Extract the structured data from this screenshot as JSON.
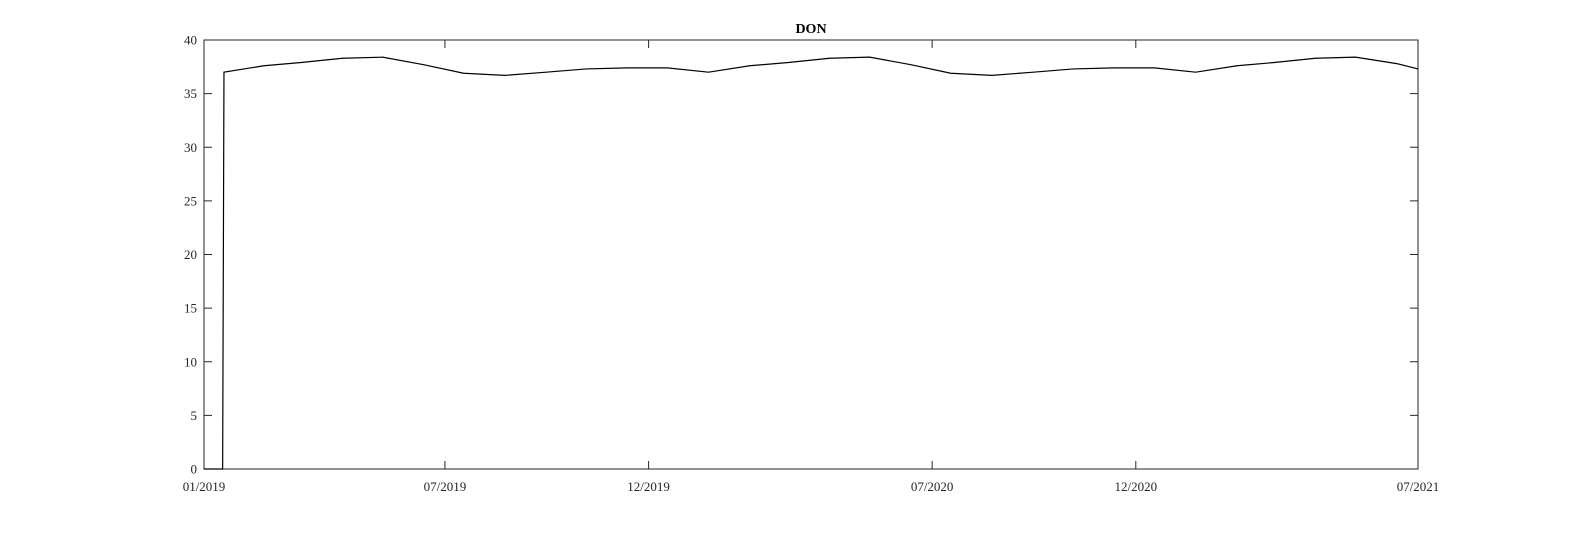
{
  "chart_data": {
    "type": "line",
    "title": "DON",
    "xlabel": "",
    "ylabel": "",
    "xlim": [
      "2019-01-01",
      "2021-07-01"
    ],
    "ylim": [
      0,
      40
    ],
    "grid": false,
    "x_tick_labels": [
      "01/2019",
      "07/2019",
      "12/2019",
      "07/2020",
      "12/2020",
      "07/2021"
    ],
    "x_tick_dates": [
      "2019-01-01",
      "2019-07-01",
      "2019-12-01",
      "2020-07-01",
      "2020-12-01",
      "2021-07-01"
    ],
    "y_ticks": [
      0,
      5,
      10,
      15,
      20,
      25,
      30,
      35,
      40
    ],
    "line_color": "#000000",
    "series": [
      {
        "x": [
          "2019-01-01",
          "2019-01-15",
          "2019-01-16",
          "2019-02-15",
          "2019-03-15",
          "2019-04-15",
          "2019-05-15",
          "2019-06-15",
          "2019-07-15",
          "2019-08-15",
          "2019-09-15",
          "2019-10-15",
          "2019-11-15",
          "2019-12-15",
          "2020-01-15",
          "2020-02-15",
          "2020-03-15",
          "2020-04-15",
          "2020-05-15",
          "2020-06-15",
          "2020-07-15",
          "2020-08-15",
          "2020-09-15",
          "2020-10-15",
          "2020-11-15",
          "2020-12-15",
          "2021-01-15",
          "2021-02-15",
          "2021-03-15",
          "2021-04-15",
          "2021-05-15",
          "2021-06-15",
          "2021-07-01"
        ],
        "values": [
          0,
          0,
          37.0,
          37.6,
          37.9,
          38.3,
          38.4,
          37.7,
          36.9,
          36.7,
          37.0,
          37.3,
          37.4,
          37.4,
          37.0,
          37.6,
          37.9,
          38.3,
          38.4,
          37.7,
          36.9,
          36.7,
          37.0,
          37.3,
          37.4,
          37.4,
          37.0,
          37.6,
          37.9,
          38.3,
          38.4,
          37.8,
          37.3
        ]
      }
    ]
  }
}
